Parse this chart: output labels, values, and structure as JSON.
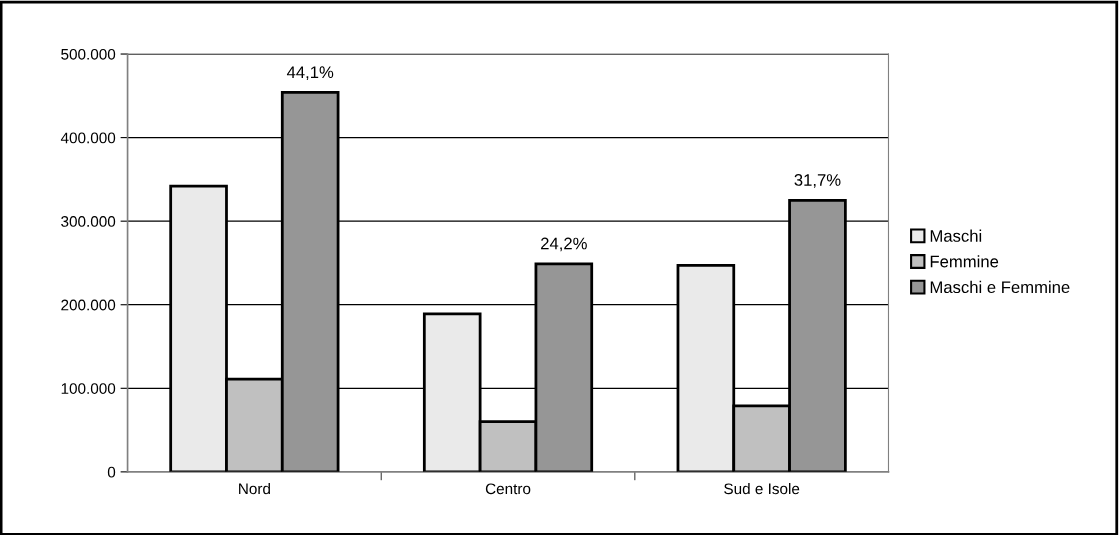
{
  "chart_data": {
    "type": "bar",
    "categories": [
      "Nord",
      "Centro",
      "Sud e Isole"
    ],
    "series": [
      {
        "name": "Maschi",
        "color": "#eaeaea",
        "values": [
          342000,
          189000,
          247000
        ]
      },
      {
        "name": "Femmine",
        "color": "#c0c0c0",
        "values": [
          111000,
          60000,
          79000
        ]
      },
      {
        "name": "Maschi e Femmine",
        "color": "#969696",
        "values": [
          454000,
          249000,
          325000
        ]
      }
    ],
    "annotations": [
      "44,1%",
      "24,2%",
      "31,7%"
    ],
    "ylim": [
      0,
      500000
    ],
    "yticks": [
      {
        "value": 0,
        "label": "0"
      },
      {
        "value": 100000,
        "label": "100.000"
      },
      {
        "value": 200000,
        "label": "200.000"
      },
      {
        "value": 300000,
        "label": "300.000"
      },
      {
        "value": 400000,
        "label": "400.000"
      },
      {
        "value": 500000,
        "label": "500.000"
      }
    ],
    "grid": "y",
    "legend": "right"
  }
}
